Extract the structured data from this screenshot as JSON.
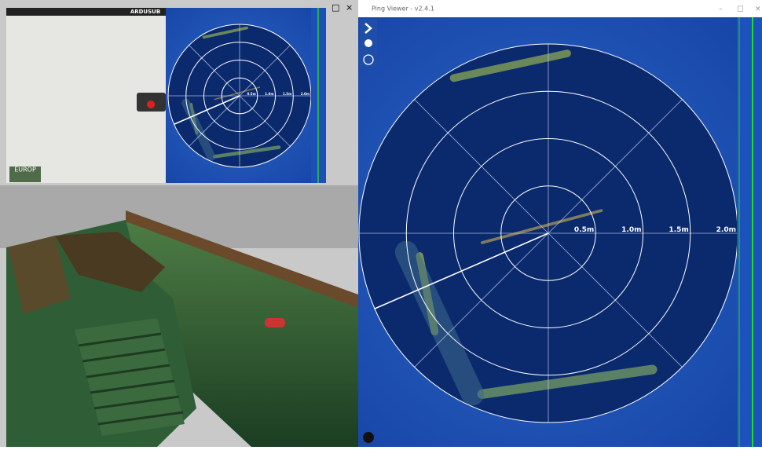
{
  "window": {
    "title": "Ping Viewer - v2.4.1",
    "controls": [
      "–",
      "□",
      "×"
    ]
  },
  "left_window": {
    "controls": [
      "□",
      "×"
    ],
    "map_label": "EUROP",
    "brand": "ARDUSUB"
  },
  "sonar": {
    "range_labels": [
      "0.5m",
      "1.0m",
      "1.5m",
      "2.0m"
    ]
  }
}
